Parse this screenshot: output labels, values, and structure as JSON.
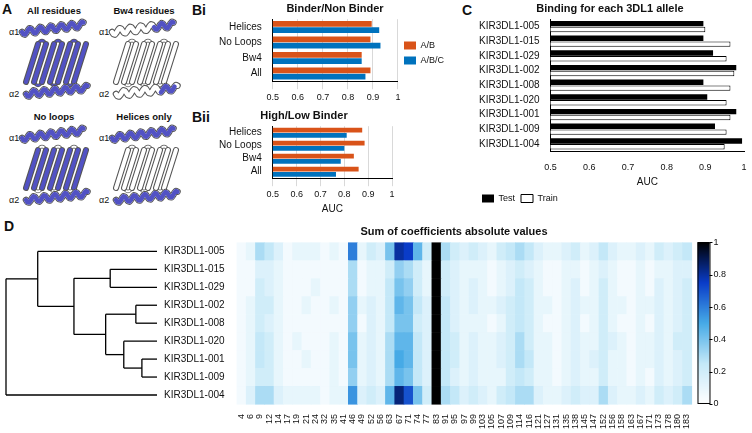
{
  "diagram": {
    "panel": "A",
    "views": [
      "All residues",
      "Bw4 residues",
      "No loops",
      "Helices only"
    ],
    "helix_labels": [
      "α1",
      "α2"
    ]
  },
  "chart_data": [
    {
      "type": "bar",
      "panel": "Bi",
      "title": "Binder/Non Binder",
      "orientation": "horizontal",
      "categories": [
        "Helices",
        "No Loops",
        "Bw4",
        "All"
      ],
      "series": [
        {
          "name": "A/B",
          "color": "#d95319",
          "values": [
            0.895,
            0.89,
            0.855,
            0.89
          ]
        },
        {
          "name": "A/B/C",
          "color": "#0072bd",
          "values": [
            0.925,
            0.93,
            0.855,
            0.87
          ]
        }
      ],
      "xlim": [
        0.5,
        1
      ],
      "xticks": [
        0.5,
        0.6,
        0.7,
        0.8,
        0.9,
        1
      ],
      "grid": true,
      "legend": "right"
    },
    {
      "type": "bar",
      "panel": "Bii",
      "title": "High/Low Binder",
      "orientation": "horizontal",
      "categories": [
        "Helices",
        "No Loops",
        "Bw4",
        "All"
      ],
      "series": [
        {
          "color": "#d95319",
          "values": [
            0.875,
            0.885,
            0.84,
            0.86
          ]
        },
        {
          "color": "#0072bd",
          "values": [
            0.81,
            0.8,
            0.785,
            0.765
          ]
        }
      ],
      "xlim": [
        0.5,
        1
      ],
      "xticks": [
        0.5,
        0.6,
        0.7,
        0.8,
        0.9,
        1
      ],
      "xlabel": "AUC",
      "grid": true
    },
    {
      "type": "bar",
      "panel": "C",
      "title": "Binding for each 3DL1 allele",
      "orientation": "horizontal",
      "categories": [
        "KIR3DL1-005",
        "KIR3DL1-015",
        "KIR3DL1-029",
        "KIR3DL1-002",
        "KIR3DL1-008",
        "KIR3DL1-020",
        "KIR3DL1-001",
        "KIR3DL1-009",
        "KIR3DL1-004"
      ],
      "series": [
        {
          "name": "Test",
          "color": "#000000",
          "values": [
            0.895,
            0.895,
            0.92,
            0.98,
            0.895,
            0.905,
            0.98,
            0.925,
            0.995
          ]
        },
        {
          "name": "Train",
          "color": "#ffffff",
          "values": [
            0.9,
            0.965,
            0.955,
            0.975,
            0.965,
            0.955,
            0.965,
            0.955,
            0.95
          ]
        }
      ],
      "xlim": [
        0.5,
        1
      ],
      "xticks": [
        0.5,
        0.6,
        0.7,
        0.8,
        0.9,
        1
      ],
      "xlabel": "AUC",
      "grid": false,
      "legend": "bottom"
    },
    {
      "type": "heatmap",
      "panel": "D",
      "title": "Sum of coefficients absolute values",
      "columns": [
        4,
        6,
        9,
        12,
        14,
        17,
        19,
        21,
        24,
        32,
        35,
        41,
        46,
        49,
        52,
        56,
        63,
        67,
        71,
        74,
        77,
        83,
        91,
        95,
        97,
        99,
        103,
        105,
        107,
        109,
        114,
        116,
        121,
        127,
        131,
        135,
        138,
        145,
        147,
        152,
        156,
        158,
        163,
        167,
        171,
        173,
        178,
        180,
        183
      ],
      "rows": [
        "KIR3DL1-005",
        "KIR3DL1-015",
        "KIR3DL1-029",
        "KIR3DL1-002",
        "KIR3DL1-008",
        "KIR3DL1-020",
        "KIR3DL1-001",
        "KIR3DL1-009",
        "KIR3DL1-004"
      ],
      "cells": [
        [
          0.05,
          0.1,
          0.3,
          0.25,
          0.15,
          0.05,
          0.1,
          0.1,
          0.1,
          0.05,
          0.1,
          0.05,
          0.6,
          0.1,
          0.2,
          0.15,
          0.4,
          0.8,
          0.75,
          0.45,
          0.2,
          1,
          0.3,
          0.2,
          0.15,
          0.2,
          0.15,
          0.1,
          0.2,
          0.25,
          0.3,
          0.25,
          0.15,
          0.1,
          0.1,
          0.15,
          0.2,
          0.1,
          0.15,
          0.25,
          0.15,
          0.1,
          0.1,
          0.15,
          0.1,
          0.2,
          0.15,
          0.2,
          0.25
        ],
        [
          0.05,
          0.05,
          0.15,
          0.15,
          0.1,
          0.05,
          0.05,
          0.05,
          0.05,
          0.05,
          0.05,
          0.05,
          0.3,
          0.05,
          0.1,
          0.1,
          0.2,
          0.35,
          0.3,
          0.2,
          0.1,
          1,
          0.2,
          0.15,
          0.1,
          0.1,
          0.1,
          0.05,
          0.1,
          0.15,
          0.2,
          0.15,
          0.1,
          0.05,
          0.05,
          0.1,
          0.1,
          0.05,
          0.1,
          0.15,
          0.1,
          0.05,
          0.05,
          0.1,
          0.05,
          0.1,
          0.1,
          0.15,
          0.15
        ],
        [
          0.05,
          0.05,
          0.2,
          0.15,
          0.1,
          0.05,
          0.05,
          0.05,
          0.1,
          0.05,
          0.05,
          0.05,
          0.3,
          0.05,
          0.1,
          0.1,
          0.25,
          0.4,
          0.35,
          0.2,
          0.1,
          1,
          0.2,
          0.15,
          0.1,
          0.15,
          0.1,
          0.05,
          0.1,
          0.15,
          0.25,
          0.2,
          0.1,
          0.05,
          0.05,
          0.1,
          0.15,
          0.05,
          0.1,
          0.2,
          0.1,
          0.05,
          0.05,
          0.1,
          0.05,
          0.15,
          0.1,
          0.15,
          0.2
        ],
        [
          0.05,
          0.1,
          0.2,
          0.2,
          0.1,
          0.05,
          0.05,
          0.1,
          0.05,
          0.05,
          0.1,
          0.05,
          0.35,
          0.1,
          0.15,
          0.1,
          0.25,
          0.45,
          0.4,
          0.25,
          0.15,
          1,
          0.25,
          0.15,
          0.1,
          0.15,
          0.1,
          0.1,
          0.15,
          0.2,
          0.25,
          0.2,
          0.1,
          0.1,
          0.05,
          0.1,
          0.15,
          0.1,
          0.1,
          0.2,
          0.1,
          0.1,
          0.05,
          0.1,
          0.1,
          0.15,
          0.1,
          0.15,
          0.2
        ],
        [
          0.05,
          0.1,
          0.2,
          0.15,
          0.1,
          0.05,
          0.05,
          0.05,
          0.05,
          0.05,
          0.05,
          0.05,
          0.35,
          0.05,
          0.15,
          0.1,
          0.25,
          0.4,
          0.4,
          0.2,
          0.15,
          1,
          0.25,
          0.15,
          0.1,
          0.1,
          0.1,
          0.05,
          0.1,
          0.2,
          0.25,
          0.2,
          0.1,
          0.05,
          0.05,
          0.1,
          0.15,
          0.05,
          0.1,
          0.2,
          0.1,
          0.05,
          0.05,
          0.1,
          0.05,
          0.15,
          0.1,
          0.15,
          0.2
        ],
        [
          0.05,
          0.1,
          0.25,
          0.2,
          0.1,
          0.05,
          0.1,
          0.05,
          0.05,
          0.05,
          0.1,
          0.05,
          0.4,
          0.1,
          0.15,
          0.1,
          0.3,
          0.45,
          0.45,
          0.25,
          0.15,
          1,
          0.25,
          0.2,
          0.1,
          0.15,
          0.1,
          0.1,
          0.15,
          0.2,
          0.3,
          0.2,
          0.1,
          0.1,
          0.05,
          0.1,
          0.15,
          0.1,
          0.1,
          0.2,
          0.15,
          0.1,
          0.05,
          0.1,
          0.1,
          0.15,
          0.1,
          0.2,
          0.2
        ],
        [
          0.05,
          0.1,
          0.25,
          0.2,
          0.1,
          0.05,
          0.05,
          0.1,
          0.05,
          0.05,
          0.1,
          0.05,
          0.4,
          0.1,
          0.15,
          0.1,
          0.3,
          0.5,
          0.45,
          0.25,
          0.15,
          1,
          0.25,
          0.2,
          0.1,
          0.15,
          0.1,
          0.1,
          0.15,
          0.2,
          0.3,
          0.25,
          0.1,
          0.1,
          0.05,
          0.1,
          0.15,
          0.1,
          0.15,
          0.2,
          0.1,
          0.1,
          0.05,
          0.1,
          0.1,
          0.15,
          0.1,
          0.15,
          0.2
        ],
        [
          0.05,
          0.1,
          0.2,
          0.2,
          0.1,
          0.05,
          0.05,
          0.05,
          0.05,
          0.05,
          0.1,
          0.05,
          0.35,
          0.1,
          0.15,
          0.1,
          0.3,
          0.45,
          0.4,
          0.25,
          0.15,
          1,
          0.25,
          0.15,
          0.1,
          0.15,
          0.1,
          0.1,
          0.1,
          0.2,
          0.25,
          0.2,
          0.1,
          0.1,
          0.05,
          0.1,
          0.15,
          0.1,
          0.1,
          0.2,
          0.1,
          0.1,
          0.05,
          0.1,
          0.05,
          0.15,
          0.1,
          0.15,
          0.2
        ],
        [
          0.05,
          0.15,
          0.3,
          0.3,
          0.15,
          0.1,
          0.1,
          0.1,
          0.1,
          0.05,
          0.1,
          0.1,
          0.55,
          0.15,
          0.2,
          0.15,
          0.45,
          0.85,
          0.7,
          0.4,
          0.2,
          1,
          0.3,
          0.25,
          0.15,
          0.2,
          0.15,
          0.1,
          0.2,
          0.25,
          0.3,
          0.3,
          0.15,
          0.1,
          0.1,
          0.15,
          0.2,
          0.15,
          0.15,
          0.3,
          0.15,
          0.1,
          0.1,
          0.15,
          0.1,
          0.2,
          0.15,
          0.2,
          0.3
        ]
      ],
      "colorbar_range": [
        0,
        1
      ],
      "colorbar_ticks": [
        0,
        0.2,
        0.4,
        0.6,
        0.8,
        1
      ],
      "dendrogram": {
        "height": 1,
        "children": [
          {
            "height": 0.79,
            "children": [
              "KIR3DL1-005",
              {
                "height": 0.55,
                "children": [
                  {
                    "height": 0.31,
                    "children": [
                      "KIR3DL1-015",
                      "KIR3DL1-029"
                    ]
                  },
                  {
                    "height": 0.34,
                    "children": [
                      {
                        "height": 0.14,
                        "children": [
                          "KIR3DL1-002",
                          "KIR3DL1-008"
                        ]
                      },
                      {
                        "height": 0.22,
                        "children": [
                          "KIR3DL1-020",
                          {
                            "height": 0.1,
                            "children": [
                              "KIR3DL1-001",
                              "KIR3DL1-009"
                            ]
                          }
                        ]
                      }
                    ]
                  }
                ]
              }
            ]
          },
          "KIR3DL1-004"
        ]
      }
    }
  ]
}
